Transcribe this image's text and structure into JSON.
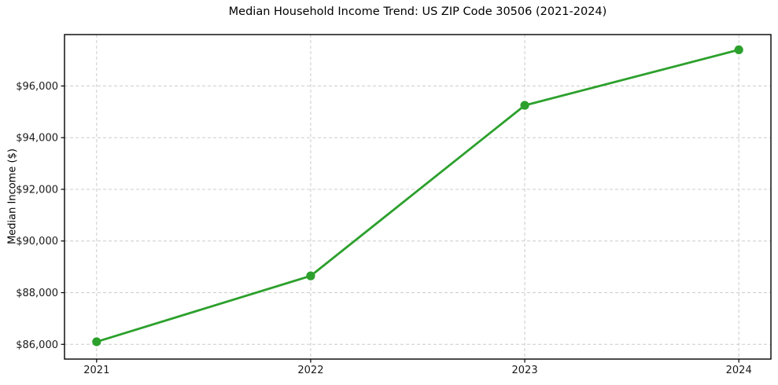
{
  "chart_data": {
    "type": "line",
    "title": "Median Household Income Trend: US ZIP Code 30506 (2021-2024)",
    "xlabel": "",
    "ylabel": "Median Income ($)",
    "x": [
      2021,
      2022,
      2023,
      2024
    ],
    "xtick_labels": [
      "2021",
      "2022",
      "2023",
      "2024"
    ],
    "series": [
      {
        "name": "Median Household Income",
        "values": [
          86100,
          88650,
          95250,
          97400
        ]
      }
    ],
    "yticks": [
      86000,
      88000,
      90000,
      92000,
      94000,
      96000
    ],
    "ytick_labels": [
      "$86,000",
      "$88,000",
      "$90,000",
      "$92,000",
      "$94,000",
      "$96,000"
    ],
    "ylim": [
      85430,
      97990
    ],
    "xlim": [
      2020.85,
      2024.15
    ],
    "grid": true,
    "grid_style": "dashed",
    "legend": "none",
    "colors": {
      "line": "#2ca02c",
      "marker": "#2ca02c",
      "grid": "#cccccc",
      "spine": "#000000",
      "background": "#ffffff",
      "tick_text": "#1a1a1a",
      "title_text": "#000000"
    }
  }
}
